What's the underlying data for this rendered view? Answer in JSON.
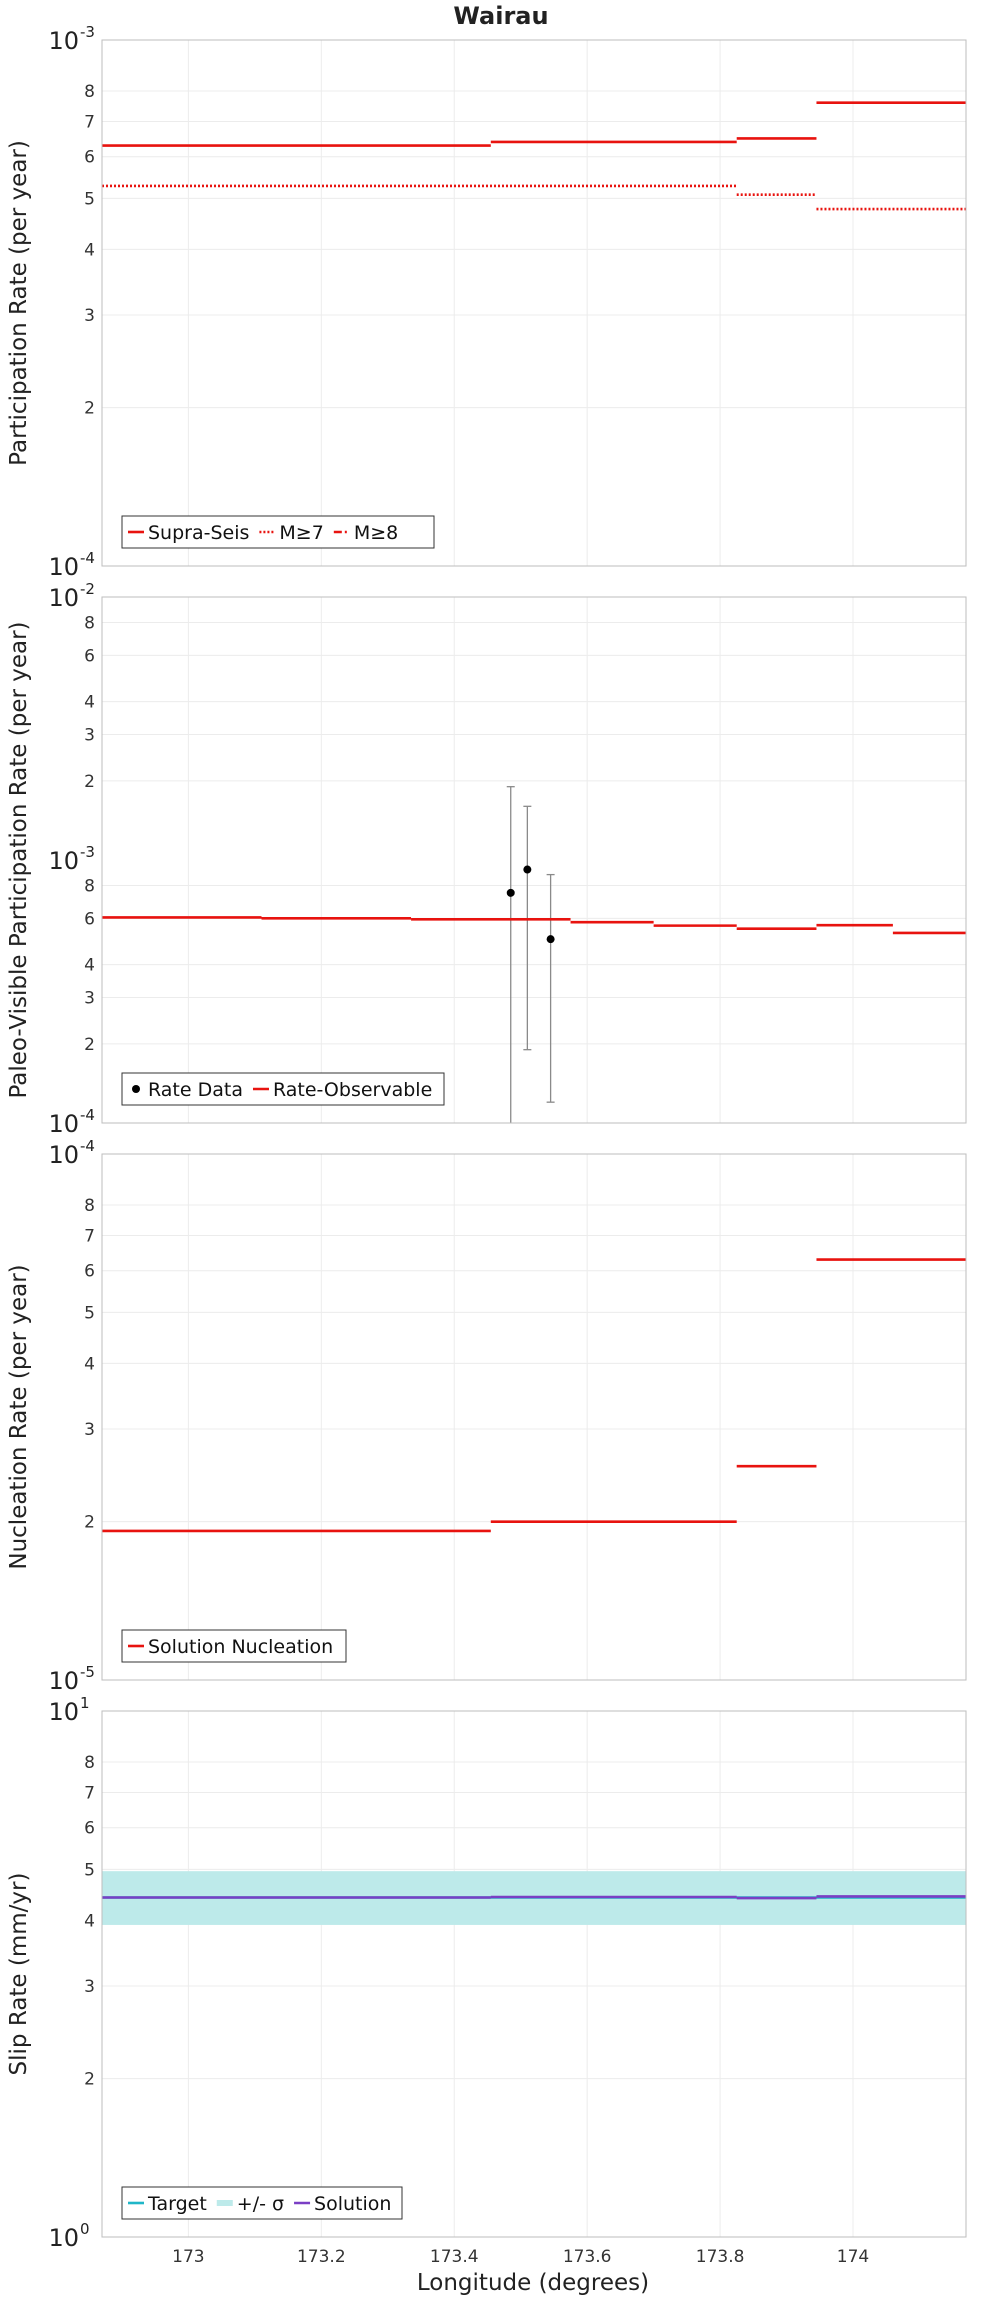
{
  "title": "Wairau",
  "xlabel": "Longitude (degrees)",
  "x_ticks": [
    173,
    173.2,
    173.4,
    173.6,
    173.8,
    174
  ],
  "xlim": [
    172.87,
    174.17
  ],
  "chart_data": [
    {
      "type": "line",
      "ylabel": "Participation Rate (per year)",
      "yscale": "log",
      "ylim": [
        0.0001,
        0.001
      ],
      "decade_labels": [
        {
          "value": 0.001,
          "base": "10",
          "exp": "-3"
        },
        {
          "value": 0.0001,
          "base": "10",
          "exp": "-4"
        }
      ],
      "minor_ticks": [
        {
          "value": 0.0008,
          "label": "8"
        },
        {
          "value": 0.0007,
          "label": "7"
        },
        {
          "value": 0.0006,
          "label": "6"
        },
        {
          "value": 0.0005,
          "label": "5"
        },
        {
          "value": 0.0004,
          "label": "4"
        },
        {
          "value": 0.0003,
          "label": "3"
        },
        {
          "value": 0.0002,
          "label": "2"
        }
      ],
      "series": [
        {
          "name": "Supra-Seis",
          "style": "solid",
          "color": "#e8130f",
          "segments": [
            [
              172.87,
              173.455,
              0.00063
            ],
            [
              173.455,
              173.825,
              0.00064
            ],
            [
              173.825,
              173.945,
              0.00065
            ],
            [
              173.945,
              174.17,
              0.00076
            ]
          ]
        },
        {
          "name": "M≥7",
          "style": "dotted",
          "color": "#e8130f",
          "segments": [
            [
              172.87,
              173.825,
              0.000528
            ],
            [
              173.825,
              173.945,
              0.000508
            ],
            [
              173.945,
              174.17,
              0.000477
            ]
          ]
        },
        {
          "name": "M≥8",
          "style": "dashdot",
          "color": "#e8130f",
          "segments": []
        }
      ],
      "legend": {
        "placement": "bottom-left",
        "entries": [
          "Supra-Seis",
          "M≥7",
          "M≥8"
        ]
      }
    },
    {
      "type": "line",
      "ylabel": "Paleo-Visible Participation Rate (per year)",
      "yscale": "log",
      "ylim": [
        0.0001,
        0.01
      ],
      "decade_labels": [
        {
          "value": 0.01,
          "base": "10",
          "exp": "-2"
        },
        {
          "value": 0.001,
          "base": "10",
          "exp": "-3"
        },
        {
          "value": 0.0001,
          "base": "10",
          "exp": "-4"
        }
      ],
      "minor_ticks": [
        {
          "value": 0.008,
          "label": "8"
        },
        {
          "value": 0.006,
          "label": "6"
        },
        {
          "value": 0.004,
          "label": "4"
        },
        {
          "value": 0.003,
          "label": "3"
        },
        {
          "value": 0.002,
          "label": "2"
        },
        {
          "value": 0.0008,
          "label": "8"
        },
        {
          "value": 0.0006,
          "label": "6"
        },
        {
          "value": 0.0004,
          "label": "4"
        },
        {
          "value": 0.0003,
          "label": "3"
        },
        {
          "value": 0.0002,
          "label": "2"
        }
      ],
      "series": [
        {
          "name": "Rate-Observable",
          "style": "solid",
          "color": "#e8130f",
          "segments": [
            [
              172.87,
              173.11,
              0.000605
            ],
            [
              173.11,
              173.335,
              0.0006
            ],
            [
              173.335,
              173.575,
              0.000595
            ],
            [
              173.575,
              173.7,
              0.00058
            ],
            [
              173.7,
              173.825,
              0.000563
            ],
            [
              173.825,
              173.945,
              0.000548
            ],
            [
              173.945,
              174.06,
              0.000565
            ],
            [
              174.06,
              174.17,
              0.000528
            ]
          ]
        }
      ],
      "rate_data": {
        "name": "Rate Data",
        "color": "#000000",
        "points": [
          {
            "x": 173.485,
            "y": 0.00075,
            "low": 0.0001,
            "high": 0.0019
          },
          {
            "x": 173.51,
            "y": 0.00092,
            "low": 0.00019,
            "high": 0.0016
          },
          {
            "x": 173.545,
            "y": 0.0005,
            "low": 0.00012,
            "high": 0.00088
          }
        ]
      },
      "legend": {
        "placement": "bottom-left",
        "entries": [
          "Rate Data",
          "Rate-Observable"
        ]
      }
    },
    {
      "type": "line",
      "ylabel": "Nucleation Rate (per year)",
      "yscale": "log",
      "ylim": [
        1e-05,
        0.0001
      ],
      "decade_labels": [
        {
          "value": 0.0001,
          "base": "10",
          "exp": "-4"
        },
        {
          "value": 1e-05,
          "base": "10",
          "exp": "-5"
        }
      ],
      "minor_ticks": [
        {
          "value": 8e-05,
          "label": "8"
        },
        {
          "value": 7e-05,
          "label": "7"
        },
        {
          "value": 6e-05,
          "label": "6"
        },
        {
          "value": 5e-05,
          "label": "5"
        },
        {
          "value": 4e-05,
          "label": "4"
        },
        {
          "value": 3e-05,
          "label": "3"
        },
        {
          "value": 2e-05,
          "label": "2"
        }
      ],
      "series": [
        {
          "name": "Solution Nucleation",
          "style": "solid",
          "color": "#e8130f",
          "segments": [
            [
              172.87,
              173.455,
              1.92e-05
            ],
            [
              173.455,
              173.825,
              2e-05
            ],
            [
              173.825,
              173.945,
              2.55e-05
            ],
            [
              173.945,
              174.17,
              6.3e-05
            ]
          ]
        }
      ],
      "legend": {
        "placement": "bottom-left",
        "entries": [
          "Solution Nucleation"
        ]
      }
    },
    {
      "type": "line",
      "ylabel": "Slip Rate (mm/yr)",
      "yscale": "log",
      "ylim": [
        1,
        10
      ],
      "decade_labels": [
        {
          "value": 10,
          "base": "10",
          "exp": "1"
        },
        {
          "value": 1,
          "base": "10",
          "exp": "0"
        }
      ],
      "minor_ticks": [
        {
          "value": 8,
          "label": "8"
        },
        {
          "value": 7,
          "label": "7"
        },
        {
          "value": 6,
          "label": "6"
        },
        {
          "value": 5,
          "label": "5"
        },
        {
          "value": 4,
          "label": "4"
        },
        {
          "value": 3,
          "label": "3"
        },
        {
          "value": 2,
          "label": "2"
        }
      ],
      "band": {
        "name": "+/- σ",
        "color": "#bdeaea",
        "low": 3.92,
        "high": 4.96
      },
      "series": [
        {
          "name": "Target",
          "style": "solid",
          "color": "#1fb6c8",
          "segments": [
            [
              172.87,
              174.17,
              4.42
            ]
          ]
        },
        {
          "name": "Solution",
          "style": "solid",
          "color": "#7a3fc4",
          "segments": [
            [
              172.87,
              173.455,
              4.42
            ],
            [
              173.455,
              173.825,
              4.43
            ],
            [
              173.825,
              173.945,
              4.41
            ],
            [
              173.945,
              174.17,
              4.44
            ]
          ]
        }
      ],
      "legend": {
        "placement": "bottom-left",
        "entries": [
          "Target",
          "+/- σ",
          "Solution"
        ]
      }
    }
  ]
}
